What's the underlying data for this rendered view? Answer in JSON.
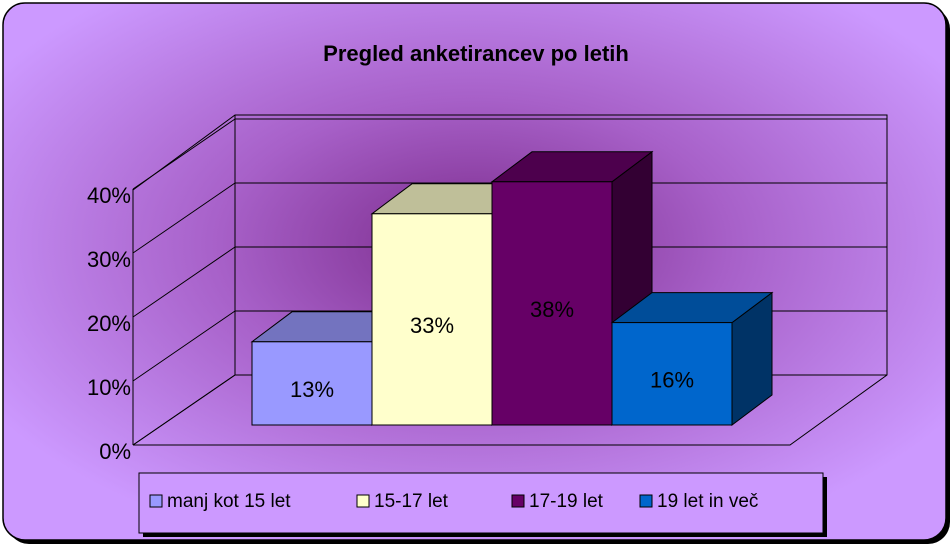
{
  "chart_data": {
    "type": "bar",
    "title": "Pregled anketirancev po letih",
    "series": [
      {
        "name": "manj kot 15 let",
        "color": "#9999ff",
        "values": [
          13
        ],
        "value_labels": [
          "13%"
        ]
      },
      {
        "name": "15-17 let",
        "color": "#ffffcc",
        "values": [
          33
        ],
        "value_labels": [
          "33%"
        ]
      },
      {
        "name": "17-19 let",
        "color": "#660066",
        "values": [
          38
        ],
        "value_labels": [
          "38%"
        ]
      },
      {
        "name": "19 let in več",
        "color": "#0066cc",
        "values": [
          16
        ],
        "value_labels": [
          "16%"
        ]
      }
    ],
    "ylim": [
      0,
      40
    ],
    "yticks": [
      {
        "value": 0,
        "label": "0%"
      },
      {
        "value": 10,
        "label": "10%"
      },
      {
        "value": 20,
        "label": "20%"
      },
      {
        "value": 30,
        "label": "30%"
      },
      {
        "value": 40,
        "label": "40%"
      }
    ],
    "grid": true,
    "legend": "bottom"
  }
}
